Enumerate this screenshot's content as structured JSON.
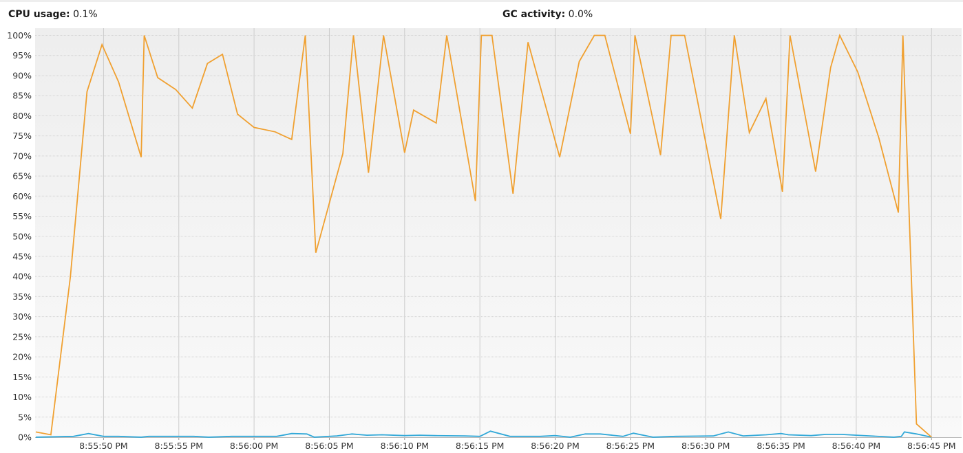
{
  "header": {
    "cpu_label": "CPU usage:",
    "cpu_value": "0.1%",
    "gc_label": "GC activity:",
    "gc_value": "0.0%"
  },
  "colors": {
    "cpu_line": "#f0a030",
    "gc_line": "#30a8d8",
    "plot_bg_top": "#eeeeee",
    "plot_bg_bottom": "#f9f9f9",
    "vgrid": "#cccccc",
    "hgrid": "#d4d4d4"
  },
  "chart_data": {
    "type": "line",
    "title": "",
    "xlabel": "",
    "ylabel": "",
    "ylim": [
      0,
      100
    ],
    "xlim": [
      "8:55:45.5 PM",
      "8:56:47 PM"
    ],
    "ytick_labels": [
      "0%",
      "5%",
      "10%",
      "15%",
      "20%",
      "25%",
      "30%",
      "35%",
      "40%",
      "45%",
      "50%",
      "55%",
      "60%",
      "65%",
      "70%",
      "75%",
      "80%",
      "85%",
      "90%",
      "95%",
      "100%"
    ],
    "xtick_labels": [
      "8:55:50 PM",
      "8:55:55 PM",
      "8:56:00 PM",
      "8:56:05 PM",
      "8:56:10 PM",
      "8:56:15 PM",
      "8:56:20 PM",
      "8:56:25 PM",
      "8:56:30 PM",
      "8:56:35 PM",
      "8:56:40 PM",
      "8:56:45 PM"
    ],
    "grid": true,
    "series": [
      {
        "key": "cpu",
        "points": [
          [
            "8:55:45.5 PM",
            1.3
          ],
          [
            "8:55:46.5 PM",
            0.6
          ],
          [
            "8:55:47.8 PM",
            40
          ],
          [
            "8:55:48.9 PM",
            86
          ],
          [
            "8:55:49.9 PM",
            97.7
          ],
          [
            "8:55:51 PM",
            88.4
          ],
          [
            "8:55:52.5 PM",
            69.7
          ],
          [
            "8:55:52.7 PM",
            100
          ],
          [
            "8:55:53.6 PM",
            89.5
          ],
          [
            "8:55:54.8 PM",
            86.5
          ],
          [
            "8:55:55.9 PM",
            81.9
          ],
          [
            "8:55:56.9 PM",
            93
          ],
          [
            "8:55:57.9 PM",
            95.3
          ],
          [
            "8:55:58.9 PM",
            80.4
          ],
          [
            "8:56:00 PM",
            77.1
          ],
          [
            "8:56:01.4 PM",
            76
          ],
          [
            "8:56:02.5 PM",
            74.1
          ],
          [
            "8:56:03.4 PM",
            100
          ],
          [
            "8:56:04.1 PM",
            45.9
          ],
          [
            "8:56:05.9 PM",
            70.6
          ],
          [
            "8:56:06.6 PM",
            100
          ],
          [
            "8:56:07.6 PM",
            65.8
          ],
          [
            "8:56:08.6 PM",
            100
          ],
          [
            "8:56:10 PM",
            70.8
          ],
          [
            "8:56:10.6 PM",
            81.4
          ],
          [
            "8:56:12.1 PM",
            78.2
          ],
          [
            "8:56:12.8 PM",
            100
          ],
          [
            "8:56:14.7 PM",
            58.8
          ],
          [
            "8:56:15.1 PM",
            100
          ],
          [
            "8:56:15.8 PM",
            100
          ],
          [
            "8:56:17.2 PM",
            60.6
          ],
          [
            "8:56:18.2 PM",
            98.3
          ],
          [
            "8:56:20.3 PM",
            69.7
          ],
          [
            "8:56:21.6 PM",
            93.5
          ],
          [
            "8:56:22.6 PM",
            100
          ],
          [
            "8:56:23.3 PM",
            100
          ],
          [
            "8:56:25 PM",
            75.5
          ],
          [
            "8:56:25.3 PM",
            100
          ],
          [
            "8:56:27 PM",
            70.2
          ],
          [
            "8:56:27.7 PM",
            100
          ],
          [
            "8:56:28.6 PM",
            100
          ],
          [
            "8:56:31 PM",
            54.3
          ],
          [
            "8:56:31.9 PM",
            100
          ],
          [
            "8:56:32.9 PM",
            75.8
          ],
          [
            "8:56:34 PM",
            84.3
          ],
          [
            "8:56:35.1 PM",
            61.1
          ],
          [
            "8:56:35.6 PM",
            100
          ],
          [
            "8:56:37.3 PM",
            66.1
          ],
          [
            "8:56:38.3 PM",
            92
          ],
          [
            "8:56:38.9 PM",
            100
          ],
          [
            "8:56:40.1 PM",
            90.9
          ],
          [
            "8:56:41.5 PM",
            74.5
          ],
          [
            "8:56:42.8 PM",
            55.9
          ],
          [
            "8:56:43.1 PM",
            100
          ],
          [
            "8:56:44 PM",
            3.3
          ],
          [
            "8:56:45 PM",
            0
          ]
        ]
      },
      {
        "key": "gc",
        "points": [
          [
            "8:55:45.5 PM",
            0
          ],
          [
            "8:55:48 PM",
            0.2
          ],
          [
            "8:55:49 PM",
            0.9
          ],
          [
            "8:55:50 PM",
            0.2
          ],
          [
            "8:55:51 PM",
            0.2
          ],
          [
            "8:55:52.5 PM",
            0
          ],
          [
            "8:55:53 PM",
            0.2
          ],
          [
            "8:55:56 PM",
            0.2
          ],
          [
            "8:55:57 PM",
            0
          ],
          [
            "8:55:58.5 PM",
            0.2
          ],
          [
            "8:56:01.5 PM",
            0.2
          ],
          [
            "8:56:02.5 PM",
            0.9
          ],
          [
            "8:56:03.5 PM",
            0.8
          ],
          [
            "8:56:04 PM",
            0
          ],
          [
            "8:56:05.5 PM",
            0.3
          ],
          [
            "8:56:06.5 PM",
            0.8
          ],
          [
            "8:56:07.5 PM",
            0.5
          ],
          [
            "8:56:08.5 PM",
            0.6
          ],
          [
            "8:56:10 PM",
            0.4
          ],
          [
            "8:56:11 PM",
            0.5
          ],
          [
            "8:56:12 PM",
            0.4
          ],
          [
            "8:56:14 PM",
            0.3
          ],
          [
            "8:56:15 PM",
            0.2
          ],
          [
            "8:56:15.7 PM",
            1.5
          ],
          [
            "8:56:17 PM",
            0.2
          ],
          [
            "8:56:19 PM",
            0.2
          ],
          [
            "8:56:20 PM",
            0.4
          ],
          [
            "8:56:21 PM",
            0
          ],
          [
            "8:56:22 PM",
            0.8
          ],
          [
            "8:56:23 PM",
            0.8
          ],
          [
            "8:56:24.5 PM",
            0.2
          ],
          [
            "8:56:25.2 PM",
            1
          ],
          [
            "8:56:26.5 PM",
            0
          ],
          [
            "8:56:28 PM",
            0.2
          ],
          [
            "8:56:30.5 PM",
            0.3
          ],
          [
            "8:56:31.5 PM",
            1.3
          ],
          [
            "8:56:32.5 PM",
            0.3
          ],
          [
            "8:56:34 PM",
            0.6
          ],
          [
            "8:56:35 PM",
            0.9
          ],
          [
            "8:56:35.5 PM",
            0.6
          ],
          [
            "8:56:37 PM",
            0.4
          ],
          [
            "8:56:38 PM",
            0.7
          ],
          [
            "8:56:39 PM",
            0.7
          ],
          [
            "8:56:40 PM",
            0.5
          ],
          [
            "8:56:42.5 PM",
            0
          ],
          [
            "8:56:43 PM",
            0.2
          ],
          [
            "8:56:43.2 PM",
            1.3
          ],
          [
            "8:56:44 PM",
            0.8
          ],
          [
            "8:56:45 PM",
            0
          ]
        ]
      }
    ]
  }
}
